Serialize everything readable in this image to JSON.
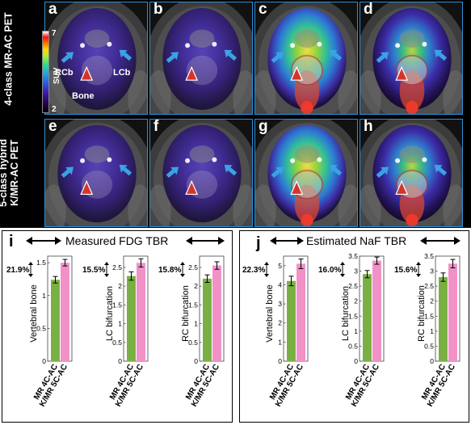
{
  "rows": [
    {
      "label_line1": "4-class MR-AC PET",
      "panels": [
        {
          "letter": "a",
          "intensity": "low"
        },
        {
          "letter": "b",
          "intensity": "low"
        },
        {
          "letter": "c",
          "intensity": "high"
        },
        {
          "letter": "d",
          "intensity": "medium"
        }
      ]
    },
    {
      "label_line1": "5-class hybrid",
      "label_line2": "K/MR-AC PET",
      "panels": [
        {
          "letter": "e",
          "intensity": "low"
        },
        {
          "letter": "f",
          "intensity": "low"
        },
        {
          "letter": "g",
          "intensity": "high"
        },
        {
          "letter": "h",
          "intensity": "medium"
        }
      ]
    }
  ],
  "colorbar": {
    "max": "7",
    "min": "2",
    "unit": "SUV"
  },
  "annotations": {
    "rcb": "RCb",
    "lcb": "LCb",
    "bone": "Bone"
  },
  "colors": {
    "arrow": "#3aa3e6",
    "arrowhead": "#d4352b",
    "bar_mr": "#79b043",
    "bar_k": "#f291c7",
    "border": "#2f8fd6"
  },
  "sections": [
    {
      "letter": "i",
      "title": "Measured FDG TBR"
    },
    {
      "letter": "j",
      "title": "Estimated NaF TBR"
    }
  ],
  "chart_data": [
    {
      "type": "bar",
      "section": "i",
      "ylabel": "Vertebral bone",
      "percent": "21.9%",
      "categories": [
        "MR 4C-AC",
        "K/MR 5C-AC"
      ],
      "values": [
        1.24,
        1.5
      ],
      "errors": [
        0.05,
        0.05
      ],
      "ylim": [
        0,
        1.6
      ],
      "yticks": [
        0,
        0.5,
        1,
        1.5
      ],
      "yticklabels": [
        "0",
        "0.5",
        "1",
        "1.5"
      ]
    },
    {
      "type": "bar",
      "section": "i",
      "ylabel": "LC bifurcation",
      "percent": "15.5%",
      "categories": [
        "MR 4C-AC",
        "K/MR 5C-AC"
      ],
      "values": [
        2.27,
        2.62
      ],
      "errors": [
        0.11,
        0.11
      ],
      "ylim": [
        0,
        2.8
      ],
      "yticks": [
        0,
        0.5,
        1,
        1.5,
        2,
        2.5
      ],
      "yticklabels": [
        "0",
        "0.5",
        "1",
        "1.5",
        "2",
        "2.5"
      ]
    },
    {
      "type": "bar",
      "section": "i",
      "ylabel": "RC bifurcation",
      "percent": "15.8%",
      "categories": [
        "MR 4C-AC",
        "K/MR 5C-AC"
      ],
      "values": [
        2.2,
        2.55
      ],
      "errors": [
        0.1,
        0.1
      ],
      "ylim": [
        0,
        2.8
      ],
      "yticks": [
        0,
        0.5,
        1,
        1.5,
        2,
        2.5
      ],
      "yticklabels": [
        "0",
        "0.5",
        "1",
        "1.5",
        "2",
        "2.5"
      ]
    },
    {
      "type": "bar",
      "section": "j",
      "ylabel": "Vertebral bone",
      "percent": "22.3%",
      "categories": [
        "MR 4C-AC",
        "K/MR 5C-AC"
      ],
      "values": [
        4.2,
        5.1
      ],
      "errors": [
        0.25,
        0.25
      ],
      "ylim": [
        0,
        5.5
      ],
      "yticks": [
        0,
        1,
        2,
        3,
        4,
        5
      ],
      "yticklabels": [
        "0",
        "1",
        "2",
        "3",
        "4",
        "5"
      ]
    },
    {
      "type": "bar",
      "section": "j",
      "ylabel": "LC bifurcation",
      "percent": "16.0%",
      "categories": [
        "MR 4C-AC",
        "K/MR 5C-AC"
      ],
      "values": [
        2.9,
        3.35
      ],
      "errors": [
        0.12,
        0.12
      ],
      "ylim": [
        0,
        3.5
      ],
      "yticks": [
        0,
        0.5,
        1,
        1.5,
        2,
        2.5,
        3,
        3.5
      ],
      "yticklabels": [
        "0",
        "0.5",
        "1",
        "1.5",
        "2",
        "2.5",
        "3",
        "3.5"
      ]
    },
    {
      "type": "bar",
      "section": "j",
      "ylabel": "RC bifurcation",
      "percent": "15.6%",
      "categories": [
        "MR 4C-AC",
        "K/MR 5C-AC"
      ],
      "values": [
        2.8,
        3.25
      ],
      "errors": [
        0.14,
        0.14
      ],
      "ylim": [
        0,
        3.5
      ],
      "yticks": [
        0,
        0.5,
        1,
        1.5,
        2,
        2.5,
        3,
        3.5
      ],
      "yticklabels": [
        "0",
        "0.5",
        "1",
        "1.5",
        "2",
        "2.5",
        "3",
        "3.5"
      ]
    }
  ]
}
